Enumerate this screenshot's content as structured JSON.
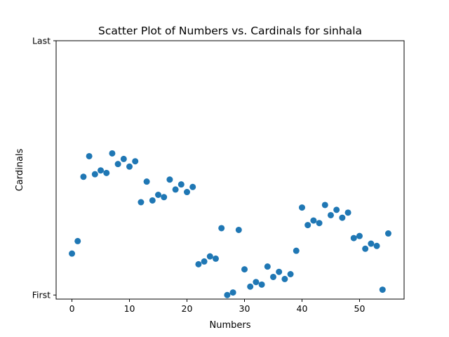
{
  "chart_data": {
    "type": "scatter",
    "title": "Scatter Plot of Numbers vs. Cardinals for sinhala",
    "xlabel": "Numbers",
    "ylabel": "Cardinals",
    "xlim": [
      -2.75,
      57.75
    ],
    "ylim": [
      -0.016,
      1.0
    ],
    "xticks": [
      0,
      10,
      20,
      30,
      40,
      50
    ],
    "xtick_labels": [
      "0",
      "10",
      "20",
      "30",
      "40",
      "50"
    ],
    "yticks": [
      0,
      1
    ],
    "ytick_labels": [
      "First",
      "Last"
    ],
    "grid": false,
    "marker_color": "#1f77b4",
    "points": [
      [
        0,
        0.163
      ],
      [
        1,
        0.212
      ],
      [
        2,
        0.465
      ],
      [
        3,
        0.546
      ],
      [
        4,
        0.475
      ],
      [
        5,
        0.49
      ],
      [
        6,
        0.48
      ],
      [
        7,
        0.557
      ],
      [
        8,
        0.515
      ],
      [
        9,
        0.535
      ],
      [
        10,
        0.505
      ],
      [
        11,
        0.526
      ],
      [
        12,
        0.365
      ],
      [
        13,
        0.446
      ],
      [
        14,
        0.372
      ],
      [
        15,
        0.394
      ],
      [
        16,
        0.385
      ],
      [
        17,
        0.454
      ],
      [
        18,
        0.415
      ],
      [
        19,
        0.435
      ],
      [
        20,
        0.405
      ],
      [
        21,
        0.425
      ],
      [
        22,
        0.121
      ],
      [
        23,
        0.132
      ],
      [
        24,
        0.152
      ],
      [
        25,
        0.143
      ],
      [
        26,
        0.263
      ],
      [
        27,
        0.0
      ],
      [
        28,
        0.01
      ],
      [
        29,
        0.256
      ],
      [
        30,
        0.101
      ],
      [
        31,
        0.033
      ],
      [
        32,
        0.051
      ],
      [
        33,
        0.041
      ],
      [
        34,
        0.112
      ],
      [
        35,
        0.071
      ],
      [
        36,
        0.091
      ],
      [
        37,
        0.063
      ],
      [
        38,
        0.082
      ],
      [
        39,
        0.174
      ],
      [
        40,
        0.344
      ],
      [
        41,
        0.275
      ],
      [
        42,
        0.293
      ],
      [
        43,
        0.283
      ],
      [
        44,
        0.354
      ],
      [
        45,
        0.314
      ],
      [
        46,
        0.335
      ],
      [
        47,
        0.304
      ],
      [
        48,
        0.324
      ],
      [
        49,
        0.224
      ],
      [
        50,
        0.232
      ],
      [
        51,
        0.182
      ],
      [
        52,
        0.202
      ],
      [
        53,
        0.193
      ],
      [
        54,
        0.021
      ],
      [
        55,
        0.242
      ]
    ]
  }
}
